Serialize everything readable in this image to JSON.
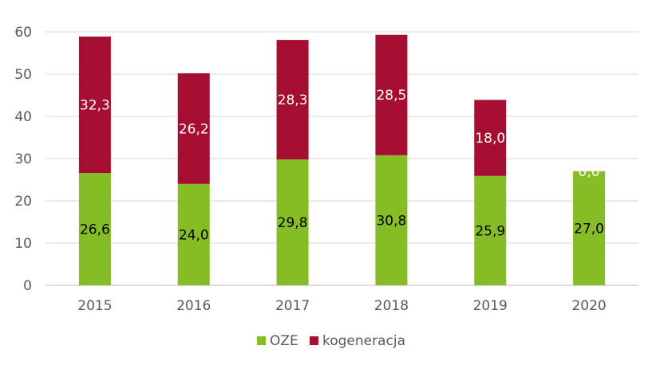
{
  "chart_data": {
    "type": "bar",
    "stacked": true,
    "categories": [
      "2015",
      "2016",
      "2017",
      "2018",
      "2019",
      "2020"
    ],
    "series": [
      {
        "name": "OZE",
        "color": "#86bc25",
        "label_color": "#000000",
        "values": [
          26.6,
          24.0,
          29.8,
          30.8,
          25.9,
          27.0
        ],
        "data_labels": [
          "26,6",
          "24,0",
          "29,8",
          "30,8",
          "25,9",
          "27,0"
        ]
      },
      {
        "name": "kogeneracja",
        "color": "#a50e30",
        "label_color": "#ffffff",
        "values": [
          32.3,
          26.2,
          28.3,
          28.5,
          18.0,
          0.0
        ],
        "data_labels": [
          "32,3",
          "26,2",
          "28,3",
          "28,5",
          "18,0",
          "0,0"
        ]
      }
    ],
    "ylim": [
      0,
      60
    ],
    "yticks": [
      "0",
      "10",
      "20",
      "30",
      "40",
      "50",
      "60"
    ],
    "grid": true,
    "legend_position": "bottom"
  }
}
